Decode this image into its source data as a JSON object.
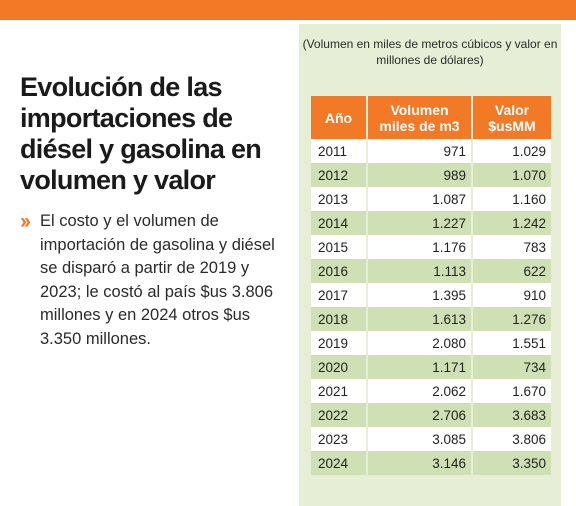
{
  "article": {
    "title": "Evolución de las importaciones de diésel y gasolina en volumen y valor",
    "bullet_icon": "double-chevron-right",
    "body": "El costo y el volumen de importación de gasolina y diésel se disparó a partir de 2019 y 2023; le costó al país $us 3.806 millones y en 2024 otros $us 3.350 millones."
  },
  "chart_data": {
    "type": "table",
    "note": "(Volumen en miles de metros cúbicos y valor en millones de dólares)",
    "headers": {
      "year": "Año",
      "volume_line1": "Volumen",
      "volume_line2": "miles de m3",
      "value_line1": "Valor",
      "value_line2": "$usMM"
    },
    "rows": [
      {
        "year": "2011",
        "volume": "971",
        "value": "1.029"
      },
      {
        "year": "2012",
        "volume": "989",
        "value": "1.070"
      },
      {
        "year": "2013",
        "volume": "1.087",
        "value": "1.160"
      },
      {
        "year": "2014",
        "volume": "1.227",
        "value": "1.242"
      },
      {
        "year": "2015",
        "volume": "1.176",
        "value": "783"
      },
      {
        "year": "2016",
        "volume": "1.113",
        "value": "622"
      },
      {
        "year": "2017",
        "volume": "1.395",
        "value": "910"
      },
      {
        "year": "2018",
        "volume": "1.613",
        "value": "1.276"
      },
      {
        "year": "2019",
        "volume": "2.080",
        "value": "1.551"
      },
      {
        "year": "2020",
        "volume": "1.171",
        "value": "734"
      },
      {
        "year": "2021",
        "volume": "2.062",
        "value": "1.670"
      },
      {
        "year": "2022",
        "volume": "2.706",
        "value": "3.683"
      },
      {
        "year": "2023",
        "volume": "3.085",
        "value": "3.806"
      },
      {
        "year": "2024",
        "volume": "3.146",
        "value": "3.350"
      }
    ]
  },
  "colors": {
    "accent": "#f27a26",
    "panel": "#e6efd6",
    "row_alt": "#cfe0b4",
    "row_base": "#ffffff"
  }
}
